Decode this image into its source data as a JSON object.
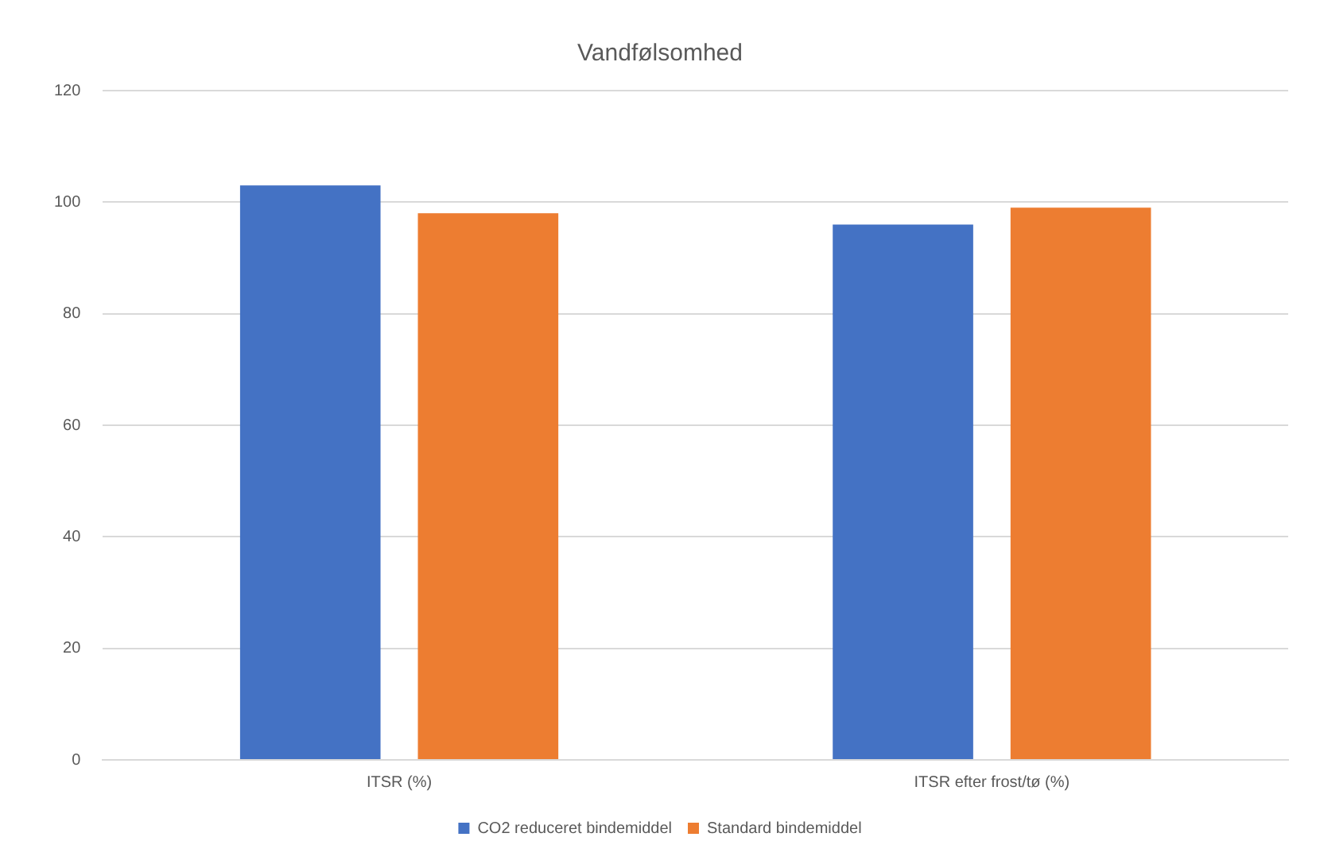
{
  "chart_data": {
    "type": "bar",
    "title": "Vandfølsomhed",
    "categories": [
      "ITSR (%)",
      "ITSR efter frost/tø (%)"
    ],
    "series": [
      {
        "name": "CO2 reduceret bindemiddel",
        "color": "#4472c4",
        "values": [
          103,
          96
        ]
      },
      {
        "name": "Standard bindemiddel",
        "color": "#ed7d31",
        "values": [
          98,
          99
        ]
      }
    ],
    "ylim": [
      0,
      120
    ],
    "yticks": [
      0,
      20,
      40,
      60,
      80,
      100,
      120
    ],
    "grid": "y",
    "legend": "bottom"
  }
}
